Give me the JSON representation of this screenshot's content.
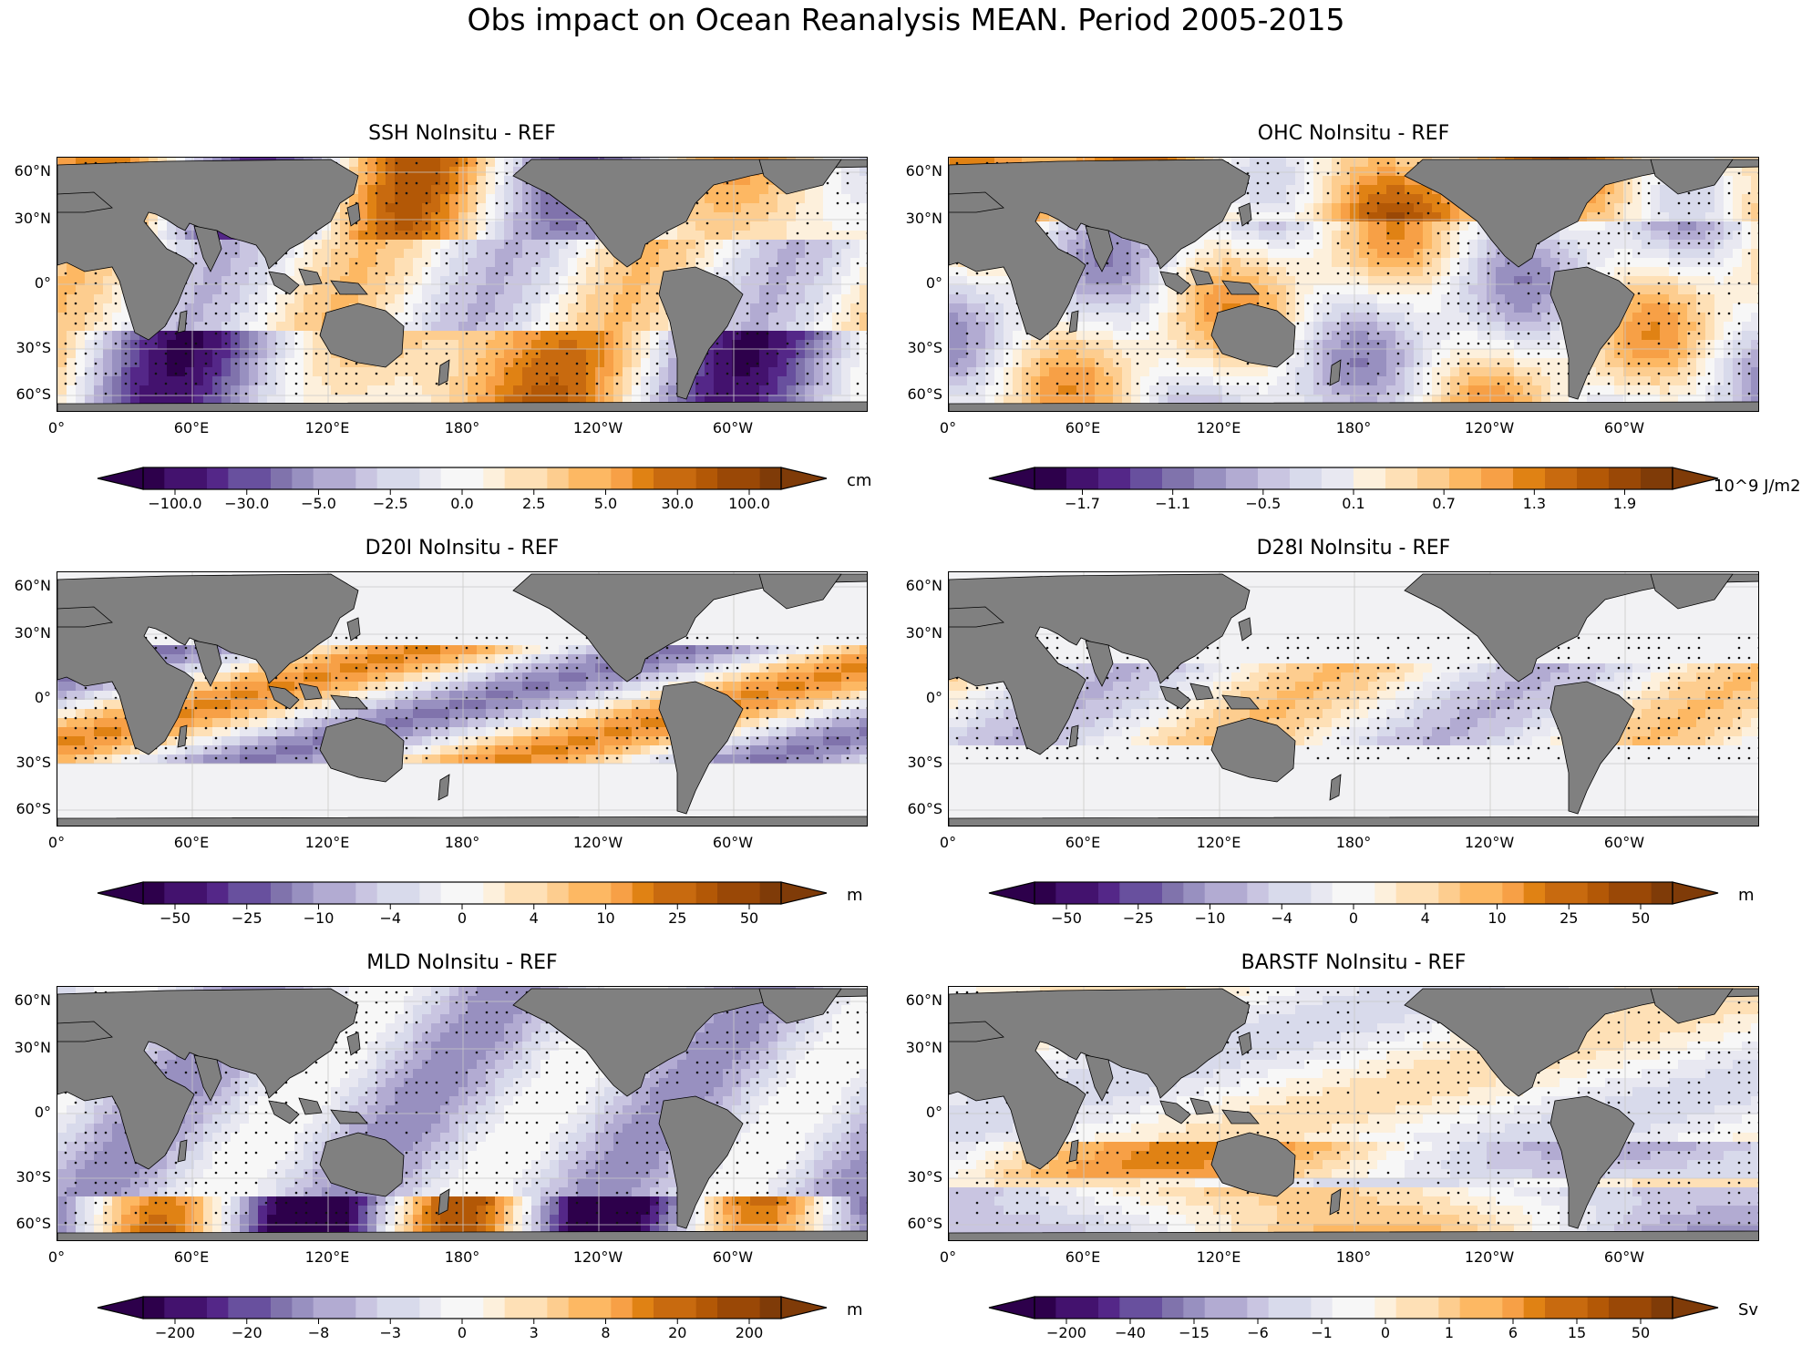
{
  "figure": {
    "title": "Obs impact on Ocean Reanalysis MEAN. Period 2005-2015"
  },
  "axes": {
    "lat_ticks": [
      "60°N",
      "30°N",
      "0°",
      "30°S",
      "60°S"
    ],
    "lon_ticks": [
      "0°",
      "60°E",
      "120°E",
      "180°",
      "120°W",
      "60°W"
    ]
  },
  "colors": {
    "land": "#808080",
    "ocean_no_data": "#f2f2f4",
    "stipple": "#111111",
    "palette": [
      "#2d004b",
      "#43126e",
      "#542788",
      "#68509e",
      "#8073ac",
      "#9890c0",
      "#b2abd2",
      "#c9c5e1",
      "#d8daeb",
      "#e8e8f1",
      "#f7f7f7",
      "#fdf0dc",
      "#fee0b6",
      "#fdcd8f",
      "#fdb863",
      "#f7a046",
      "#e08214",
      "#c86a0f",
      "#b35806",
      "#9a4806",
      "#7f3b08"
    ]
  },
  "panels": [
    {
      "id": "ssh",
      "title": "SSH NoInsitu - REF",
      "unit": "cm",
      "colorbar_ticks": [
        "−100.0",
        "−30.0",
        "−5.0",
        "−2.5",
        "0.0",
        "2.5",
        "5.0",
        "30.0",
        "100.0"
      ],
      "levels": 30,
      "stipple": "widespread"
    },
    {
      "id": "ohc",
      "title": "OHC NoInsitu - REF",
      "unit": "10^9 J/m2",
      "colorbar_ticks": [
        "−1.7",
        "−1.1",
        "−0.5",
        "0.1",
        "0.7",
        "1.3",
        "1.9"
      ],
      "levels": 20,
      "stipple": "widespread"
    },
    {
      "id": "d20i",
      "title": "D20I NoInsitu - REF",
      "unit": "m",
      "colorbar_ticks": [
        "−50",
        "−25",
        "−10",
        "−4",
        "0",
        "4",
        "10",
        "25",
        "50"
      ],
      "levels": 30,
      "stipple": "tropics"
    },
    {
      "id": "d28i",
      "title": "D28I NoInsitu - REF",
      "unit": "m",
      "colorbar_ticks": [
        "−50",
        "−25",
        "−10",
        "−4",
        "0",
        "4",
        "10",
        "25",
        "50"
      ],
      "levels": 30,
      "stipple": "tropics"
    },
    {
      "id": "mld",
      "title": "MLD NoInsitu - REF",
      "unit": "m",
      "colorbar_ticks": [
        "−200",
        "−20",
        "−8",
        "−3",
        "0",
        "3",
        "8",
        "20",
        "200"
      ],
      "levels": 30,
      "stipple": "widespread"
    },
    {
      "id": "barstf",
      "title": "BARSTF NoInsitu - REF",
      "unit": "Sv",
      "colorbar_ticks": [
        "−200",
        "−40",
        "−15",
        "−6",
        "−1",
        "0",
        "1",
        "6",
        "15",
        "50"
      ],
      "levels": 30,
      "stipple": "widespread"
    }
  ]
}
